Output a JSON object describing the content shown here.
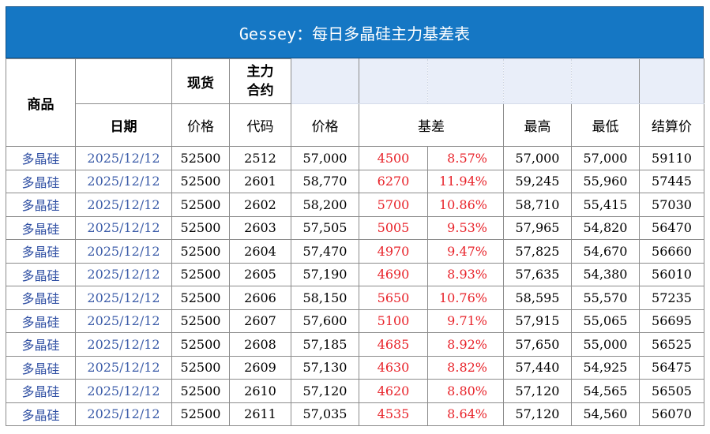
{
  "title": "Gessey：每日多晶硅主力基差表",
  "headers": {
    "product": "商品",
    "spot": "现货",
    "main_contract": [
      "主力",
      "合约"
    ],
    "date": "日期",
    "price": "价格",
    "code": "代码",
    "contract_price": "价格",
    "basis": "基差",
    "high": "最高",
    "low": "最低",
    "settle": "结算价"
  },
  "rows": [
    {
      "name": "多晶硅",
      "date": "2025/12/12",
      "spot": "52500",
      "code": "2512",
      "price": "57,000",
      "basis": "4500",
      "pct": "8.57%",
      "high": "57,000",
      "low": "57,000",
      "settle": "59110"
    },
    {
      "name": "多晶硅",
      "date": "2025/12/12",
      "spot": "52500",
      "code": "2601",
      "price": "58,770",
      "basis": "6270",
      "pct": "11.94%",
      "high": "59,245",
      "low": "55,960",
      "settle": "57445"
    },
    {
      "name": "多晶硅",
      "date": "2025/12/12",
      "spot": "52500",
      "code": "2602",
      "price": "58,200",
      "basis": "5700",
      "pct": "10.86%",
      "high": "58,710",
      "low": "55,415",
      "settle": "57030"
    },
    {
      "name": "多晶硅",
      "date": "2025/12/12",
      "spot": "52500",
      "code": "2603",
      "price": "57,505",
      "basis": "5005",
      "pct": "9.53%",
      "high": "57,965",
      "low": "54,820",
      "settle": "56470"
    },
    {
      "name": "多晶硅",
      "date": "2025/12/12",
      "spot": "52500",
      "code": "2604",
      "price": "57,470",
      "basis": "4970",
      "pct": "9.47%",
      "high": "57,825",
      "low": "54,670",
      "settle": "56660"
    },
    {
      "name": "多晶硅",
      "date": "2025/12/12",
      "spot": "52500",
      "code": "2605",
      "price": "57,190",
      "basis": "4690",
      "pct": "8.93%",
      "high": "57,635",
      "low": "54,380",
      "settle": "56010"
    },
    {
      "name": "多晶硅",
      "date": "2025/12/12",
      "spot": "52500",
      "code": "2606",
      "price": "58,150",
      "basis": "5650",
      "pct": "10.76%",
      "high": "58,595",
      "low": "55,570",
      "settle": "57235"
    },
    {
      "name": "多晶硅",
      "date": "2025/12/12",
      "spot": "52500",
      "code": "2607",
      "price": "57,600",
      "basis": "5100",
      "pct": "9.71%",
      "high": "57,915",
      "low": "55,065",
      "settle": "56695"
    },
    {
      "name": "多晶硅",
      "date": "2025/12/12",
      "spot": "52500",
      "code": "2608",
      "price": "57,185",
      "basis": "4685",
      "pct": "8.92%",
      "high": "57,650",
      "low": "55,000",
      "settle": "56525"
    },
    {
      "name": "多晶硅",
      "date": "2025/12/12",
      "spot": "52500",
      "code": "2609",
      "price": "57,130",
      "basis": "4630",
      "pct": "8.82%",
      "high": "57,440",
      "low": "54,925",
      "settle": "56475"
    },
    {
      "name": "多晶硅",
      "date": "2025/12/12",
      "spot": "52500",
      "code": "2610",
      "price": "57,120",
      "basis": "4620",
      "pct": "8.80%",
      "high": "57,120",
      "low": "54,565",
      "settle": "56505"
    },
    {
      "name": "多晶硅",
      "date": "2025/12/12",
      "spot": "52500",
      "code": "2611",
      "price": "57,035",
      "basis": "4535",
      "pct": "8.64%",
      "high": "57,120",
      "low": "54,560",
      "settle": "56070"
    }
  ],
  "colors": {
    "title_bg": "#1577c4",
    "header_pale": "#e9eef9",
    "basis_red": "#e8232a",
    "name_blue": "#2f4fa3"
  }
}
